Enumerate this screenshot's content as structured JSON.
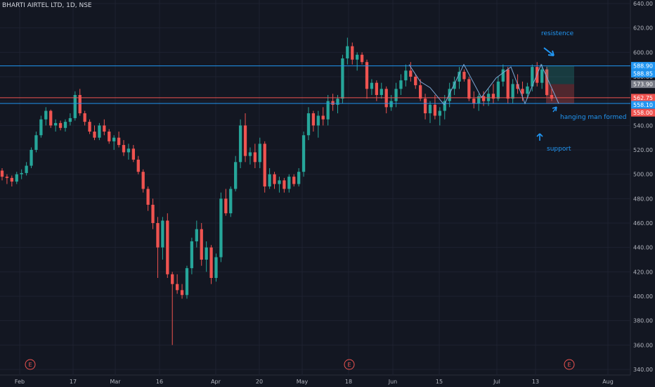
{
  "header": {
    "title": "BHARTI AIRTEL LTD, 1D, NSE"
  },
  "colors": {
    "background": "#131722",
    "up": "#26a69a",
    "down": "#ef5350",
    "grid": "#1e2230",
    "axis_text": "#b2b5be",
    "blue_line": "#2196f3",
    "red_line": "#ef5350"
  },
  "annotations": {
    "resistance": "resistence",
    "hanging": "hanging man formed",
    "support": "support"
  },
  "chart_data": {
    "type": "candlestick",
    "title": "BHARTI AIRTEL LTD, 1D, NSE",
    "ylim": [
      340,
      640
    ],
    "y_ticks": [
      340,
      360,
      380,
      400,
      420,
      440,
      460,
      480,
      500,
      520,
      540,
      560,
      580,
      600,
      620,
      640
    ],
    "x_labels": [
      "Feb",
      "17",
      "Mar",
      "16",
      "Apr",
      "20",
      "May",
      "18",
      "Jun",
      "15",
      "Jul",
      "13",
      "Aug"
    ],
    "earnings_marker": "E",
    "horizontal_lines": [
      {
        "price": 588.9,
        "color": "blue"
      },
      {
        "price": 558.1,
        "color": "blue"
      },
      {
        "price": 562.75,
        "color": "red"
      }
    ],
    "price_labels": [
      {
        "text": "588.90",
        "kind": "blue"
      },
      {
        "text": "588.85",
        "kind": "blue"
      },
      {
        "text": "573.90",
        "kind": "gray"
      },
      {
        "text": "562.75",
        "kind": "red"
      },
      {
        "text": "558.10",
        "kind": "blue"
      },
      {
        "text": "558.00",
        "kind": "red"
      }
    ],
    "candles": [
      [
        503,
        505,
        495,
        498
      ],
      [
        498,
        500,
        492,
        497
      ],
      [
        497,
        499,
        490,
        494
      ],
      [
        494,
        502,
        492,
        500
      ],
      [
        500,
        504,
        496,
        501
      ],
      [
        501,
        510,
        499,
        507
      ],
      [
        507,
        522,
        505,
        520
      ],
      [
        520,
        535,
        518,
        532
      ],
      [
        532,
        548,
        530,
        545
      ],
      [
        545,
        555,
        540,
        552
      ],
      [
        552,
        553,
        538,
        540
      ],
      [
        540,
        545,
        535,
        542
      ],
      [
        542,
        544,
        536,
        538
      ],
      [
        538,
        545,
        535,
        543
      ],
      [
        543,
        550,
        540,
        546
      ],
      [
        546,
        568,
        544,
        565
      ],
      [
        565,
        570,
        548,
        550
      ],
      [
        550,
        552,
        540,
        543
      ],
      [
        543,
        545,
        533,
        535
      ],
      [
        535,
        540,
        528,
        530
      ],
      [
        530,
        542,
        528,
        540
      ],
      [
        540,
        545,
        532,
        535
      ],
      [
        535,
        537,
        525,
        527
      ],
      [
        527,
        532,
        520,
        530
      ],
      [
        530,
        535,
        522,
        524
      ],
      [
        524,
        528,
        515,
        518
      ],
      [
        518,
        525,
        512,
        521
      ],
      [
        521,
        524,
        510,
        512
      ],
      [
        512,
        515,
        500,
        502
      ],
      [
        502,
        504,
        485,
        488
      ],
      [
        488,
        490,
        470,
        475
      ],
      [
        475,
        480,
        455,
        460
      ],
      [
        460,
        465,
        415,
        440
      ],
      [
        440,
        465,
        430,
        462
      ],
      [
        462,
        468,
        415,
        418
      ],
      [
        418,
        420,
        360,
        410
      ],
      [
        410,
        418,
        402,
        405
      ],
      [
        405,
        410,
        398,
        401
      ],
      [
        401,
        425,
        398,
        423
      ],
      [
        423,
        448,
        418,
        445
      ],
      [
        445,
        462,
        440,
        455
      ],
      [
        455,
        460,
        425,
        430
      ],
      [
        430,
        445,
        420,
        440
      ],
      [
        440,
        442,
        410,
        415
      ],
      [
        415,
        435,
        412,
        432
      ],
      [
        432,
        485,
        428,
        480
      ],
      [
        480,
        488,
        466,
        468
      ],
      [
        468,
        490,
        465,
        488
      ],
      [
        488,
        515,
        486,
        510
      ],
      [
        510,
        545,
        505,
        540
      ],
      [
        540,
        550,
        510,
        515
      ],
      [
        515,
        522,
        508,
        518
      ],
      [
        518,
        525,
        505,
        510
      ],
      [
        510,
        530,
        505,
        525
      ],
      [
        525,
        527,
        485,
        490
      ],
      [
        490,
        505,
        488,
        500
      ],
      [
        500,
        502,
        488,
        492
      ],
      [
        492,
        498,
        485,
        495
      ],
      [
        495,
        497,
        485,
        488
      ],
      [
        488,
        500,
        485,
        498
      ],
      [
        498,
        500,
        490,
        492
      ],
      [
        492,
        505,
        490,
        502
      ],
      [
        502,
        535,
        498,
        532
      ],
      [
        532,
        555,
        528,
        550
      ],
      [
        550,
        552,
        535,
        540
      ],
      [
        540,
        552,
        530,
        548
      ],
      [
        548,
        555,
        540,
        545
      ],
      [
        545,
        565,
        540,
        560
      ],
      [
        560,
        566,
        552,
        557
      ],
      [
        557,
        565,
        550,
        562
      ],
      [
        562,
        598,
        558,
        595
      ],
      [
        595,
        612,
        590,
        605
      ],
      [
        605,
        608,
        590,
        594
      ],
      [
        594,
        600,
        585,
        598
      ],
      [
        598,
        600,
        590,
        592
      ],
      [
        592,
        594,
        562,
        570
      ],
      [
        570,
        578,
        565,
        575
      ],
      [
        575,
        577,
        560,
        565
      ],
      [
        565,
        575,
        562,
        570
      ],
      [
        570,
        572,
        550,
        555
      ],
      [
        555,
        565,
        552,
        560
      ],
      [
        560,
        575,
        555,
        570
      ],
      [
        570,
        582,
        565,
        577
      ],
      [
        577,
        590,
        572,
        585
      ],
      [
        585,
        592,
        576,
        580
      ],
      [
        580,
        582,
        570,
        573
      ],
      [
        573,
        578,
        560,
        562
      ],
      [
        562,
        566,
        545,
        550
      ],
      [
        550,
        560,
        542,
        557
      ],
      [
        557,
        565,
        545,
        548
      ],
      [
        548,
        555,
        540,
        552
      ],
      [
        552,
        565,
        545,
        560
      ],
      [
        560,
        575,
        555,
        570
      ],
      [
        570,
        580,
        565,
        576
      ],
      [
        576,
        588,
        570,
        584
      ],
      [
        584,
        586,
        576,
        578
      ],
      [
        578,
        580,
        560,
        562
      ],
      [
        562,
        568,
        554,
        558
      ],
      [
        558,
        566,
        552,
        564
      ],
      [
        564,
        568,
        556,
        560
      ],
      [
        560,
        570,
        556,
        566
      ],
      [
        566,
        574,
        558,
        562
      ],
      [
        562,
        580,
        560,
        576
      ],
      [
        576,
        590,
        572,
        586
      ],
      [
        586,
        588,
        558,
        562
      ],
      [
        562,
        578,
        558,
        574
      ],
      [
        574,
        582,
        566,
        570
      ],
      [
        570,
        576,
        560,
        566
      ],
      [
        566,
        575,
        562,
        572
      ],
      [
        572,
        590,
        568,
        588
      ],
      [
        588,
        592,
        572,
        575
      ],
      [
        575,
        590,
        570,
        586
      ],
      [
        586,
        588,
        564,
        565
      ],
      [
        565,
        570,
        560,
        562
      ]
    ]
  }
}
